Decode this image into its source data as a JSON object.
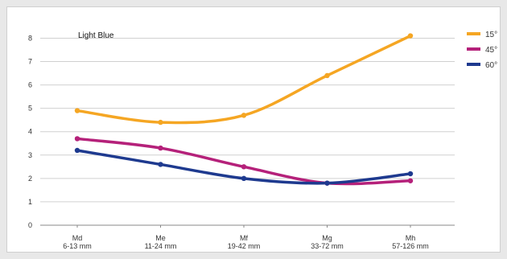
{
  "chart_data": {
    "type": "line",
    "title": "Light Blue",
    "categories": [
      [
        "Md",
        "6-13 mm"
      ],
      [
        "Me",
        "11-24 mm"
      ],
      [
        "Mf",
        "19-42 mm"
      ],
      [
        "Mg",
        "33-72 mm"
      ],
      [
        "Mh",
        "57-126 mm"
      ]
    ],
    "series": [
      {
        "name": "15°",
        "color": "#f5a623",
        "values": [
          4.9,
          4.4,
          4.7,
          6.4,
          8.1
        ]
      },
      {
        "name": "45°",
        "color": "#b5217a",
        "values": [
          3.7,
          3.3,
          2.5,
          1.8,
          1.9
        ]
      },
      {
        "name": "60°",
        "color": "#1e3a8f",
        "values": [
          3.2,
          2.6,
          2.0,
          1.8,
          2.2
        ]
      }
    ],
    "yticks": [
      "0",
      "1",
      "2",
      "3",
      "4",
      "5",
      "6",
      "7",
      "8"
    ],
    "ylim": [
      0,
      8.6
    ],
    "grid": true,
    "legend": "right"
  }
}
